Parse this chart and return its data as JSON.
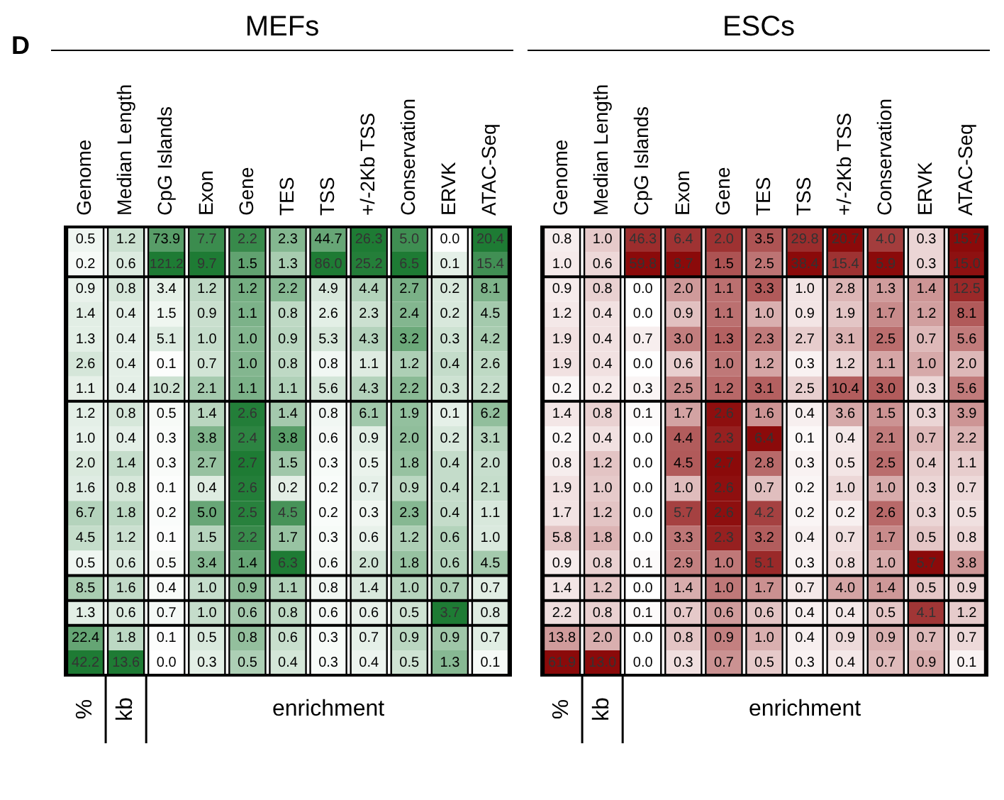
{
  "chart_data": [
    {
      "type": "other",
      "title": "D"
    },
    {
      "type": "heatmap",
      "title": "MEFs",
      "color": "#1e7b34",
      "data_labels": true,
      "cell_labels": [
        [
          "0.5",
          "1.2",
          "73.9",
          "7.7",
          "2.2",
          "2.3",
          "44.7",
          "26.3",
          "5.0",
          "0.0",
          "20.4"
        ],
        [
          "0.2",
          "0.6",
          "121.2",
          "9.7",
          "1.5",
          "1.3",
          "86.0",
          "25.2",
          "6.5",
          "0.1",
          "15.4"
        ],
        [
          "0.9",
          "0.8",
          "3.4",
          "1.2",
          "1.2",
          "2.2",
          "4.9",
          "4.4",
          "2.7",
          "0.2",
          "8.1"
        ],
        [
          "1.4",
          "0.4",
          "1.5",
          "0.9",
          "1.1",
          "0.8",
          "2.6",
          "2.3",
          "2.4",
          "0.2",
          "4.5"
        ],
        [
          "1.3",
          "0.4",
          "5.1",
          "1.0",
          "1.0",
          "0.9",
          "5.3",
          "4.3",
          "3.2",
          "0.3",
          "4.2"
        ],
        [
          "2.6",
          "0.4",
          "0.1",
          "0.7",
          "1.0",
          "0.8",
          "0.8",
          "1.1",
          "1.2",
          "0.4",
          "2.6"
        ],
        [
          "1.1",
          "0.4",
          "10.2",
          "2.1",
          "1.1",
          "1.1",
          "5.6",
          "4.3",
          "2.2",
          "0.3",
          "2.2"
        ],
        [
          "1.2",
          "0.8",
          "0.5",
          "1.4",
          "2.6",
          "1.4",
          "0.8",
          "6.1",
          "1.9",
          "0.1",
          "6.2"
        ],
        [
          "1.0",
          "0.4",
          "0.3",
          "3.8",
          "2.4",
          "3.8",
          "0.6",
          "0.9",
          "2.0",
          "0.2",
          "3.1"
        ],
        [
          "2.0",
          "1.4",
          "0.3",
          "2.7",
          "2.7",
          "1.5",
          "0.3",
          "0.5",
          "1.8",
          "0.4",
          "2.0"
        ],
        [
          "1.6",
          "0.8",
          "0.1",
          "0.4",
          "2.6",
          "0.2",
          "0.2",
          "0.7",
          "0.9",
          "0.4",
          "2.1"
        ],
        [
          "6.7",
          "1.8",
          "0.2",
          "5.0",
          "2.5",
          "4.5",
          "0.2",
          "0.3",
          "2.3",
          "0.4",
          "1.1"
        ],
        [
          "4.5",
          "1.2",
          "0.1",
          "1.5",
          "2.2",
          "1.7",
          "0.3",
          "0.6",
          "1.2",
          "0.6",
          "1.0"
        ],
        [
          "0.5",
          "0.6",
          "0.5",
          "3.4",
          "1.4",
          "6.3",
          "0.6",
          "2.0",
          "1.8",
          "0.6",
          "4.5"
        ],
        [
          "8.5",
          "1.6",
          "0.4",
          "1.0",
          "0.9",
          "1.1",
          "0.8",
          "1.4",
          "1.0",
          "0.7",
          "0.7"
        ],
        [
          "1.3",
          "0.6",
          "0.7",
          "1.0",
          "0.6",
          "0.8",
          "0.6",
          "0.6",
          "0.5",
          "3.7",
          "0.8"
        ],
        [
          "22.4",
          "1.8",
          "0.1",
          "0.5",
          "0.8",
          "0.6",
          "0.3",
          "0.7",
          "0.9",
          "0.9",
          "0.7"
        ],
        [
          "42.2",
          "13.6",
          "0.0",
          "0.3",
          "0.5",
          "0.4",
          "0.3",
          "0.4",
          "0.5",
          "1.3",
          "0.1"
        ]
      ],
      "y_categories": [
        null,
        null,
        null,
        null,
        null,
        null,
        null,
        null,
        null,
        null,
        null,
        null,
        null,
        null,
        null,
        null,
        null,
        null
      ],
      "categories": [
        "Genome",
        "Median Length",
        "CpG Islands",
        "Exon",
        "Gene",
        "TES",
        "TSS",
        "+/-2Kb TSS",
        "Conservation",
        "ERVK",
        "ATAC-Seq"
      ],
      "annotations": [
        "%",
        "kb",
        "enrichment"
      ],
      "cells": [
        [
          0.5,
          1.2,
          73.9,
          7.7,
          2.2,
          2.3,
          44.7,
          26.3,
          5.0,
          0.0,
          20.4
        ],
        [
          0.2,
          0.6,
          121.2,
          9.7,
          1.5,
          1.3,
          86.0,
          25.2,
          6.5,
          0.1,
          15.4
        ],
        [
          0.9,
          0.8,
          3.4,
          1.2,
          1.2,
          2.2,
          4.9,
          4.4,
          2.7,
          0.2,
          8.1
        ],
        [
          1.4,
          0.4,
          1.5,
          0.9,
          1.1,
          0.8,
          2.6,
          2.3,
          2.4,
          0.2,
          4.5
        ],
        [
          1.3,
          0.4,
          5.1,
          1.0,
          1.0,
          0.9,
          5.3,
          4.3,
          3.2,
          0.3,
          4.2
        ],
        [
          2.6,
          0.4,
          0.1,
          0.7,
          1.0,
          0.8,
          0.8,
          1.1,
          1.2,
          0.4,
          2.6
        ],
        [
          1.1,
          0.4,
          10.2,
          2.1,
          1.1,
          1.1,
          5.6,
          4.3,
          2.2,
          0.3,
          2.2
        ],
        [
          1.2,
          0.8,
          0.5,
          1.4,
          2.6,
          1.4,
          0.8,
          6.1,
          1.9,
          0.1,
          6.2
        ],
        [
          1.0,
          0.4,
          0.3,
          3.8,
          2.4,
          3.8,
          0.6,
          0.9,
          2.0,
          0.2,
          3.1
        ],
        [
          2.0,
          1.4,
          0.3,
          2.7,
          2.7,
          1.5,
          0.3,
          0.5,
          1.8,
          0.4,
          2.0
        ],
        [
          1.6,
          0.8,
          0.1,
          0.4,
          2.6,
          0.2,
          0.2,
          0.7,
          0.9,
          0.4,
          2.1
        ],
        [
          6.7,
          1.8,
          0.2,
          5.0,
          2.5,
          4.5,
          0.2,
          0.3,
          2.3,
          0.4,
          1.1
        ],
        [
          4.5,
          1.2,
          0.1,
          1.5,
          2.2,
          1.7,
          0.3,
          0.6,
          1.2,
          0.6,
          1.0
        ],
        [
          0.5,
          0.6,
          0.5,
          3.4,
          1.4,
          6.3,
          0.6,
          2.0,
          1.8,
          0.6,
          4.5
        ],
        [
          8.5,
          1.6,
          0.4,
          1.0,
          0.9,
          1.1,
          0.8,
          1.4,
          1.0,
          0.7,
          0.7
        ],
        [
          1.3,
          0.6,
          0.7,
          1.0,
          0.6,
          0.8,
          0.6,
          0.6,
          0.5,
          3.7,
          0.8
        ],
        [
          22.4,
          1.8,
          0.1,
          0.5,
          0.8,
          0.6,
          0.3,
          0.7,
          0.9,
          0.9,
          0.7
        ],
        [
          42.2,
          13.6,
          0.0,
          0.3,
          0.5,
          0.4,
          0.3,
          0.4,
          0.5,
          1.3,
          0.1
        ]
      ]
    },
    {
      "type": "heatmap",
      "title": "ESCs",
      "color": "#8b0a0a",
      "data_labels": true,
      "cell_labels": [
        [
          "0.8",
          "1.0",
          "46.3",
          "6.4",
          "2.0",
          "3.5",
          "29.8",
          "20.7",
          "4.0",
          "0.3",
          "15.7"
        ],
        [
          "1.0",
          "0.6",
          "59.8",
          "8.7",
          "1.5",
          "2.5",
          "38.4",
          "15.4",
          "5.9",
          "0.3",
          "15.0"
        ],
        [
          "0.9",
          "0.8",
          "0.0",
          "2.0",
          "1.1",
          "3.3",
          "1.0",
          "2.8",
          "1.3",
          "1.4",
          "12.5"
        ],
        [
          "1.2",
          "0.4",
          "0.0",
          "0.9",
          "1.1",
          "1.0",
          "0.9",
          "1.9",
          "1.7",
          "1.2",
          "8.1"
        ],
        [
          "1.9",
          "0.4",
          "0.7",
          "3.0",
          "1.3",
          "2.3",
          "2.7",
          "3.1",
          "2.5",
          "0.7",
          "5.6"
        ],
        [
          "1.9",
          "0.4",
          "0.0",
          "0.6",
          "1.0",
          "1.2",
          "0.3",
          "1.2",
          "1.1",
          "1.0",
          "2.0"
        ],
        [
          "0.2",
          "0.2",
          "0.3",
          "2.5",
          "1.2",
          "3.1",
          "2.5",
          "10.4",
          "3.0",
          "0.3",
          "5.6"
        ],
        [
          "1.4",
          "0.8",
          "0.1",
          "1.7",
          "2.6",
          "1.6",
          "0.4",
          "3.6",
          "1.5",
          "0.3",
          "3.9"
        ],
        [
          "0.2",
          "0.4",
          "0.0",
          "4.4",
          "2.3",
          "6.4",
          "0.1",
          "0.4",
          "2.1",
          "0.7",
          "2.2"
        ],
        [
          "0.8",
          "1.2",
          "0.0",
          "4.5",
          "2.7",
          "2.8",
          "0.3",
          "0.5",
          "2.5",
          "0.4",
          "1.1"
        ],
        [
          "1.9",
          "1.0",
          "0.0",
          "1.0",
          "2.6",
          "0.7",
          "0.2",
          "1.0",
          "1.0",
          "0.3",
          "0.7"
        ],
        [
          "1.7",
          "1.2",
          "0.0",
          "5.7",
          "2.6",
          "4.2",
          "0.2",
          "0.2",
          "2.6",
          "0.3",
          "0.5"
        ],
        [
          "5.8",
          "1.8",
          "0.0",
          "3.3",
          "2.3",
          "3.2",
          "0.4",
          "0.7",
          "1.7",
          "0.5",
          "0.8"
        ],
        [
          "0.9",
          "0.8",
          "0.1",
          "2.9",
          "1.0",
          "5.1",
          "0.3",
          "0.8",
          "1.0",
          "5.7",
          "3.8"
        ],
        [
          "1.4",
          "1.2",
          "0.0",
          "1.4",
          "1.0",
          "1.7",
          "0.7",
          "4.0",
          "1.4",
          "0.5",
          "0.9"
        ],
        [
          "2.2",
          "0.8",
          "0.1",
          "0.7",
          "0.6",
          "0.6",
          "0.4",
          "0.4",
          "0.5",
          "4.1",
          "1.2"
        ],
        [
          "13.8",
          "2.0",
          "0.0",
          "0.8",
          "0.9",
          "1.0",
          "0.4",
          "0.9",
          "0.9",
          "0.7",
          "0.7"
        ],
        [
          "61.9",
          "13.0",
          "0.0",
          "0.3",
          "0.7",
          "0.5",
          "0.3",
          "0.4",
          "0.7",
          "0.9",
          "0.1"
        ]
      ],
      "y_categories": [
        null,
        null,
        null,
        null,
        null,
        null,
        null,
        null,
        null,
        null,
        null,
        null,
        null,
        null,
        null,
        null,
        null,
        null
      ],
      "categories": [
        "Genome",
        "Median Length",
        "CpG Islands",
        "Exon",
        "Gene",
        "TES",
        "TSS",
        "+/-2Kb TSS",
        "Conservation",
        "ERVK",
        "ATAC-Seq"
      ],
      "annotations": [
        "%",
        "kb",
        "enrichment"
      ],
      "cells": [
        [
          0.8,
          1.0,
          46.3,
          6.4,
          2.0,
          3.5,
          29.8,
          20.7,
          4.0,
          0.3,
          15.7
        ],
        [
          1.0,
          0.6,
          59.8,
          8.7,
          1.5,
          2.5,
          38.4,
          15.4,
          5.9,
          0.3,
          15.0
        ],
        [
          0.9,
          0.8,
          0.0,
          2.0,
          1.1,
          3.3,
          1.0,
          2.8,
          1.3,
          1.4,
          12.5
        ],
        [
          1.2,
          0.4,
          0.0,
          0.9,
          1.1,
          1.0,
          0.9,
          1.9,
          1.7,
          1.2,
          8.1
        ],
        [
          1.9,
          0.4,
          0.7,
          3.0,
          1.3,
          2.3,
          2.7,
          3.1,
          2.5,
          0.7,
          5.6
        ],
        [
          1.9,
          0.4,
          0.0,
          0.6,
          1.0,
          1.2,
          0.3,
          1.2,
          1.1,
          1.0,
          2.0
        ],
        [
          0.2,
          0.2,
          0.3,
          2.5,
          1.2,
          3.1,
          2.5,
          10.4,
          3.0,
          0.3,
          5.6
        ],
        [
          1.4,
          0.8,
          0.1,
          1.7,
          2.6,
          1.6,
          0.4,
          3.6,
          1.5,
          0.3,
          3.9
        ],
        [
          0.2,
          0.4,
          0.0,
          4.4,
          2.3,
          6.4,
          0.1,
          0.4,
          2.1,
          0.7,
          2.2
        ],
        [
          0.8,
          1.2,
          0.0,
          4.5,
          2.7,
          2.8,
          0.3,
          0.5,
          2.5,
          0.4,
          1.1
        ],
        [
          1.9,
          1.0,
          0.0,
          1.0,
          2.6,
          0.7,
          0.2,
          1.0,
          1.0,
          0.3,
          0.7
        ],
        [
          1.7,
          1.2,
          0.0,
          5.7,
          2.6,
          4.2,
          0.2,
          0.2,
          2.6,
          0.3,
          0.5
        ],
        [
          5.8,
          1.8,
          0.0,
          3.3,
          2.3,
          3.2,
          0.4,
          0.7,
          1.7,
          0.5,
          0.8
        ],
        [
          0.9,
          0.8,
          0.1,
          2.9,
          1.0,
          5.1,
          0.3,
          0.8,
          1.0,
          5.7,
          3.8
        ],
        [
          1.4,
          1.2,
          0.0,
          1.4,
          1.0,
          1.7,
          0.7,
          4.0,
          1.4,
          0.5,
          0.9
        ],
        [
          2.2,
          0.8,
          0.1,
          0.7,
          0.6,
          0.6,
          0.4,
          0.4,
          0.5,
          4.1,
          1.2
        ],
        [
          13.8,
          2.0,
          0.0,
          0.8,
          0.9,
          1.0,
          0.4,
          0.9,
          0.9,
          0.7,
          0.7
        ],
        [
          61.9,
          13.0,
          0.0,
          0.3,
          0.7,
          0.5,
          0.3,
          0.4,
          0.7,
          0.9,
          0.1
        ]
      ]
    }
  ]
}
